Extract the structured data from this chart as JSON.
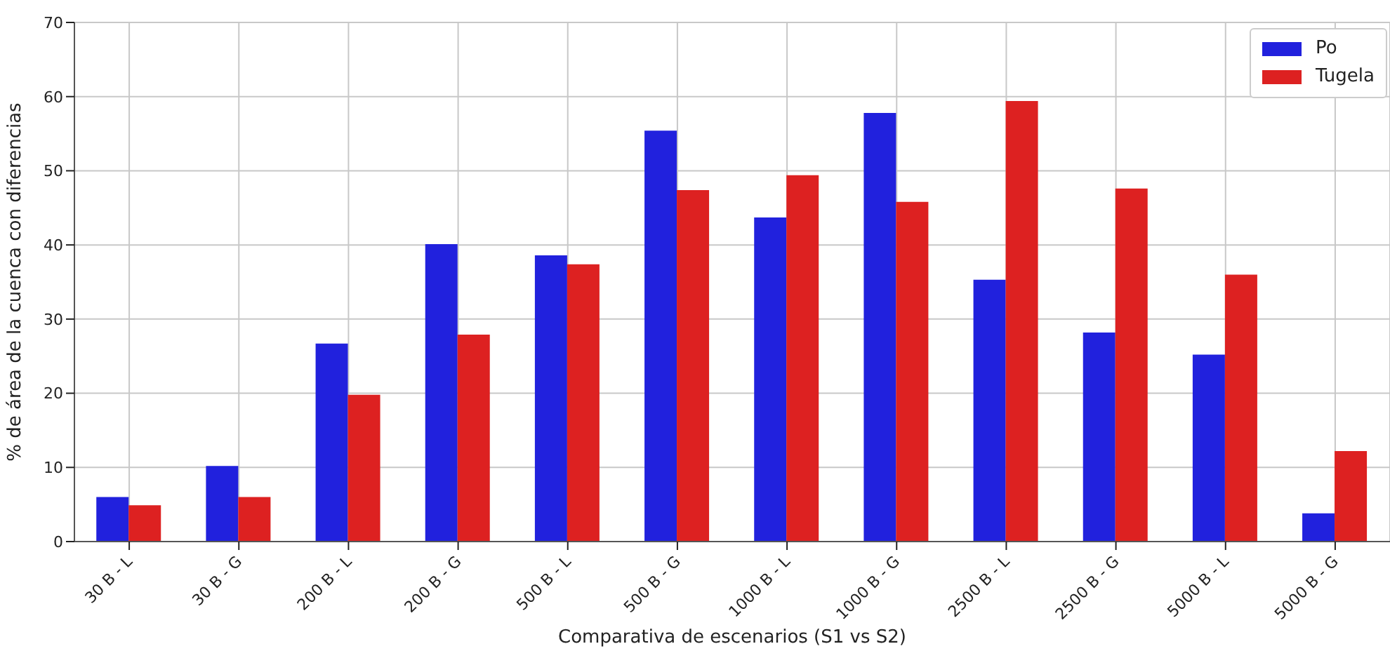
{
  "chart_data": {
    "type": "bar",
    "xlabel": "Comparativa de escenarios (S1 vs S2)",
    "ylabel": "% de área de la cuenca con diferencias",
    "categories": [
      "30 B - L",
      "30 B - G",
      "200 B - L",
      "200 B - G",
      "500 B - L",
      "500 B - G",
      "1000 B - L",
      "1000 B - G",
      "2500 B - L",
      "2500 B - G",
      "5000 B - L",
      "5000 B - G"
    ],
    "series": [
      {
        "name": "Po",
        "color": "#2121dd",
        "values": [
          6.0,
          10.2,
          26.7,
          40.1,
          38.6,
          55.4,
          43.7,
          57.8,
          35.3,
          28.2,
          25.2,
          3.8
        ]
      },
      {
        "name": "Tugela",
        "color": "#dd2121",
        "values": [
          4.9,
          6.0,
          19.8,
          27.9,
          37.4,
          47.4,
          49.4,
          45.8,
          59.4,
          47.6,
          36.0,
          12.2
        ]
      }
    ],
    "ylim": [
      0,
      70
    ],
    "yticks": [
      0,
      10,
      20,
      30,
      40,
      50,
      60,
      70
    ],
    "grid": true,
    "legend": "top right"
  }
}
